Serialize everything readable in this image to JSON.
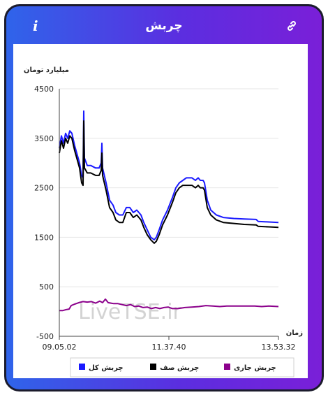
{
  "header": {
    "title": "چربش",
    "info_icon": "info-icon",
    "link_icon": "link-icon"
  },
  "watermark": "LiveTSE.ir",
  "chart_data": {
    "type": "line",
    "ylabel": "میلیارد تومان",
    "xlabel": "زمان",
    "ylim": [
      -500,
      4500
    ],
    "yticks": [
      "4500",
      "3500",
      "2500",
      "1500",
      "500",
      "-500"
    ],
    "xtick_labels": [
      "09.05.02",
      "11.37.40",
      "13.53.32"
    ],
    "legend": [
      {
        "label": "چربش کل",
        "color": "#1a1aff"
      },
      {
        "label": "چربش صف",
        "color": "#000000"
      },
      {
        "label": "چربش جاری",
        "color": "#8b008b"
      }
    ],
    "series": [
      {
        "name": "چربش کل",
        "color": "#1a1aff",
        "points": [
          [
            0,
            3300
          ],
          [
            3,
            3550
          ],
          [
            6,
            3400
          ],
          [
            9,
            3600
          ],
          [
            12,
            3500
          ],
          [
            15,
            3650
          ],
          [
            18,
            3600
          ],
          [
            22,
            3350
          ],
          [
            25,
            3200
          ],
          [
            29,
            3000
          ],
          [
            32,
            2750
          ],
          [
            34,
            2700
          ],
          [
            35,
            4050
          ],
          [
            36,
            3100
          ],
          [
            40,
            2950
          ],
          [
            45,
            2950
          ],
          [
            52,
            2900
          ],
          [
            57,
            2900
          ],
          [
            60,
            3000
          ],
          [
            61,
            3400
          ],
          [
            62,
            2900
          ],
          [
            67,
            2600
          ],
          [
            72,
            2250
          ],
          [
            77,
            2150
          ],
          [
            81,
            2000
          ],
          [
            86,
            1950
          ],
          [
            91,
            1950
          ],
          [
            96,
            2100
          ],
          [
            101,
            2100
          ],
          [
            106,
            2000
          ],
          [
            111,
            2050
          ],
          [
            117,
            1950
          ],
          [
            121,
            1800
          ],
          [
            126,
            1650
          ],
          [
            131,
            1500
          ],
          [
            136,
            1450
          ],
          [
            139,
            1500
          ],
          [
            143,
            1650
          ],
          [
            148,
            1850
          ],
          [
            155,
            2050
          ],
          [
            162,
            2300
          ],
          [
            167,
            2500
          ],
          [
            172,
            2600
          ],
          [
            177,
            2650
          ],
          [
            182,
            2700
          ],
          [
            190,
            2700
          ],
          [
            195,
            2650
          ],
          [
            199,
            2700
          ],
          [
            202,
            2650
          ],
          [
            206,
            2650
          ],
          [
            208,
            2600
          ],
          [
            212,
            2250
          ],
          [
            217,
            2050
          ],
          [
            225,
            1950
          ],
          [
            235,
            1900
          ],
          [
            250,
            1880
          ],
          [
            265,
            1870
          ],
          [
            282,
            1860
          ],
          [
            285,
            1820
          ],
          [
            300,
            1810
          ],
          [
            314,
            1800
          ]
        ]
      },
      {
        "name": "چربش صف",
        "color": "#000000",
        "points": [
          [
            0,
            3200
          ],
          [
            3,
            3450
          ],
          [
            6,
            3300
          ],
          [
            9,
            3500
          ],
          [
            12,
            3400
          ],
          [
            15,
            3550
          ],
          [
            18,
            3500
          ],
          [
            22,
            3250
          ],
          [
            25,
            3100
          ],
          [
            29,
            2900
          ],
          [
            32,
            2600
          ],
          [
            34,
            2550
          ],
          [
            35,
            3850
          ],
          [
            36,
            2900
          ],
          [
            40,
            2800
          ],
          [
            45,
            2800
          ],
          [
            52,
            2750
          ],
          [
            57,
            2750
          ],
          [
            60,
            2850
          ],
          [
            61,
            3200
          ],
          [
            62,
            2750
          ],
          [
            67,
            2450
          ],
          [
            72,
            2100
          ],
          [
            77,
            2000
          ],
          [
            81,
            1850
          ],
          [
            86,
            1800
          ],
          [
            91,
            1800
          ],
          [
            96,
            2000
          ],
          [
            101,
            2000
          ],
          [
            106,
            1900
          ],
          [
            111,
            1950
          ],
          [
            117,
            1850
          ],
          [
            121,
            1700
          ],
          [
            126,
            1550
          ],
          [
            131,
            1450
          ],
          [
            136,
            1380
          ],
          [
            139,
            1420
          ],
          [
            143,
            1550
          ],
          [
            148,
            1750
          ],
          [
            155,
            1950
          ],
          [
            162,
            2200
          ],
          [
            167,
            2400
          ],
          [
            172,
            2500
          ],
          [
            177,
            2550
          ],
          [
            182,
            2550
          ],
          [
            190,
            2550
          ],
          [
            195,
            2500
          ],
          [
            199,
            2550
          ],
          [
            202,
            2500
          ],
          [
            206,
            2500
          ],
          [
            208,
            2450
          ],
          [
            212,
            2100
          ],
          [
            217,
            1950
          ],
          [
            225,
            1850
          ],
          [
            235,
            1800
          ],
          [
            250,
            1780
          ],
          [
            265,
            1760
          ],
          [
            282,
            1750
          ],
          [
            285,
            1720
          ],
          [
            300,
            1710
          ],
          [
            314,
            1700
          ]
        ]
      },
      {
        "name": "چربش جاری",
        "color": "#8b008b",
        "points": [
          [
            0,
            20
          ],
          [
            5,
            20
          ],
          [
            10,
            40
          ],
          [
            14,
            50
          ],
          [
            17,
            120
          ],
          [
            22,
            150
          ],
          [
            28,
            180
          ],
          [
            34,
            200
          ],
          [
            40,
            190
          ],
          [
            46,
            200
          ],
          [
            52,
            170
          ],
          [
            58,
            210
          ],
          [
            62,
            180
          ],
          [
            66,
            250
          ],
          [
            70,
            180
          ],
          [
            74,
            170
          ],
          [
            78,
            160
          ],
          [
            84,
            160
          ],
          [
            90,
            140
          ],
          [
            96,
            120
          ],
          [
            102,
            140
          ],
          [
            108,
            100
          ],
          [
            114,
            110
          ],
          [
            120,
            80
          ],
          [
            126,
            90
          ],
          [
            132,
            60
          ],
          [
            138,
            80
          ],
          [
            144,
            60
          ],
          [
            150,
            80
          ],
          [
            156,
            90
          ],
          [
            162,
            60
          ],
          [
            170,
            60
          ],
          [
            180,
            80
          ],
          [
            190,
            90
          ],
          [
            200,
            100
          ],
          [
            210,
            120
          ],
          [
            220,
            110
          ],
          [
            230,
            100
          ],
          [
            240,
            110
          ],
          [
            250,
            110
          ],
          [
            260,
            110
          ],
          [
            270,
            110
          ],
          [
            280,
            110
          ],
          [
            290,
            100
          ],
          [
            300,
            110
          ],
          [
            314,
            100
          ]
        ]
      }
    ]
  }
}
